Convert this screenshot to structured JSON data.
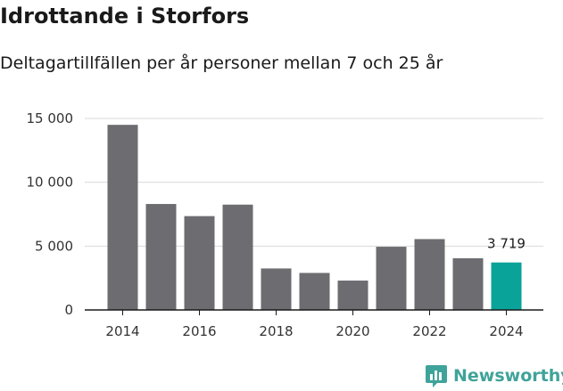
{
  "title": "Idrottande i Storfors",
  "subtitle": "Deltagartillfällen per år personer mellan 7 och 25 år",
  "brand": {
    "name": "Newsworthy",
    "color": "#3fa39a"
  },
  "colors": {
    "bar": "#6d6c71",
    "highlight": "#0aa39a",
    "grid": "#d9d9d9",
    "axis": "#1a1a1a"
  },
  "chart_data": {
    "type": "bar",
    "title": "Idrottande i Storfors",
    "subtitle": "Deltagartillfällen per år personer mellan 7 och 25 år",
    "xlabel": "",
    "ylabel": "",
    "categories": [
      "2014",
      "2015",
      "2016",
      "2017",
      "2018",
      "2019",
      "2020",
      "2021",
      "2022",
      "2023",
      "2024"
    ],
    "values": [
      14500,
      8300,
      7350,
      8250,
      3250,
      2900,
      2300,
      4950,
      5550,
      4050,
      3719
    ],
    "highlight_index": 10,
    "data_labels": [
      {
        "index": 10,
        "text": "3 719"
      }
    ],
    "ylim": [
      0,
      15000
    ],
    "yticks": [
      0,
      5000,
      10000,
      15000
    ],
    "ytick_labels": [
      "0",
      "5 000",
      "10 000",
      "15 000"
    ],
    "xtick_labels": [
      "2014",
      "2016",
      "2018",
      "2020",
      "2022",
      "2024"
    ],
    "xtick_indices": [
      0,
      2,
      4,
      6,
      8,
      10
    ],
    "grid": true,
    "legend": "none"
  }
}
